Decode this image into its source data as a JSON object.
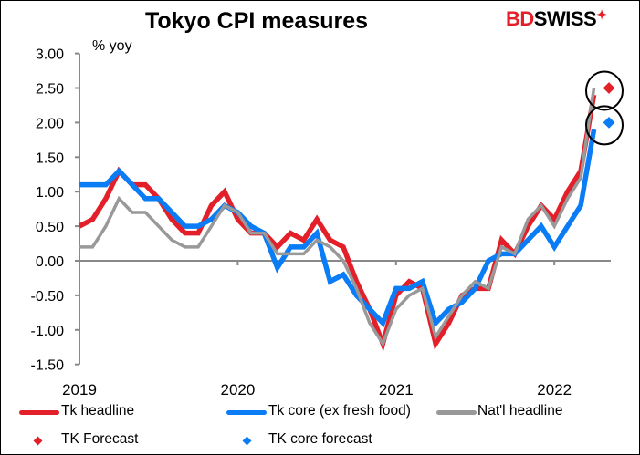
{
  "title": "Tokyo CPI measures",
  "logo": {
    "text_bd": "BD",
    "text_swiss": "SWISS",
    "star": "✦"
  },
  "colors": {
    "tk_headline": "#e3202a",
    "tk_core": "#0a7cf5",
    "natl_headline": "#999999",
    "forecast_circle": "#000000"
  },
  "chart_data": {
    "type": "line",
    "title": "Tokyo CPI measures",
    "ylabel": "% yoy",
    "xlabel": "",
    "ylim": [
      -1.5,
      3.0
    ],
    "yticks": [
      "3.00",
      "2.50",
      "2.00",
      "1.50",
      "1.00",
      "0.50",
      "0.00",
      "-0.50",
      "-1.00",
      "-1.50"
    ],
    "xticks": [
      "2019",
      "2020",
      "2021",
      "2022"
    ],
    "x_start": "2019-01",
    "x_frequency": "monthly",
    "grid": false,
    "legend_position": "bottom",
    "series": [
      {
        "name": "Tk headline",
        "values": [
          0.5,
          0.6,
          0.9,
          1.3,
          1.1,
          1.1,
          0.9,
          0.6,
          0.4,
          0.4,
          0.8,
          1.0,
          0.6,
          0.4,
          0.4,
          0.2,
          0.4,
          0.3,
          0.6,
          0.3,
          0.2,
          -0.3,
          -0.7,
          -1.2,
          -0.5,
          -0.3,
          -0.4,
          -1.2,
          -0.9,
          -0.5,
          -0.4,
          -0.4,
          0.3,
          0.1,
          0.5,
          0.8,
          0.6,
          1.0,
          1.3,
          2.4
        ]
      },
      {
        "name": "Tk core (ex fresh food)",
        "values": [
          1.1,
          1.1,
          1.1,
          1.3,
          1.1,
          0.9,
          0.9,
          0.7,
          0.5,
          0.5,
          0.6,
          0.8,
          0.7,
          0.5,
          0.4,
          -0.1,
          0.2,
          0.2,
          0.4,
          -0.3,
          -0.2,
          -0.5,
          -0.7,
          -0.9,
          -0.4,
          -0.4,
          -0.3,
          -0.9,
          -0.7,
          -0.6,
          -0.4,
          0.0,
          0.1,
          0.1,
          0.3,
          0.5,
          0.2,
          0.5,
          0.8,
          1.9
        ]
      },
      {
        "name": "Nat'l headline",
        "values": [
          0.2,
          0.2,
          0.5,
          0.9,
          0.7,
          0.7,
          0.5,
          0.3,
          0.2,
          0.2,
          0.5,
          0.8,
          0.7,
          0.4,
          0.4,
          0.1,
          0.1,
          0.1,
          0.3,
          0.2,
          0.0,
          -0.4,
          -0.9,
          -1.2,
          -0.7,
          -0.5,
          -0.4,
          -1.1,
          -0.8,
          -0.5,
          -0.3,
          -0.4,
          0.2,
          0.1,
          0.6,
          0.8,
          0.5,
          0.9,
          1.2,
          2.5
        ]
      }
    ],
    "forecasts": [
      {
        "name": "TK Forecast",
        "month_index": 40,
        "value": 2.5
      },
      {
        "name": "TK core forecast",
        "month_index": 40,
        "value": 2.0
      }
    ]
  }
}
